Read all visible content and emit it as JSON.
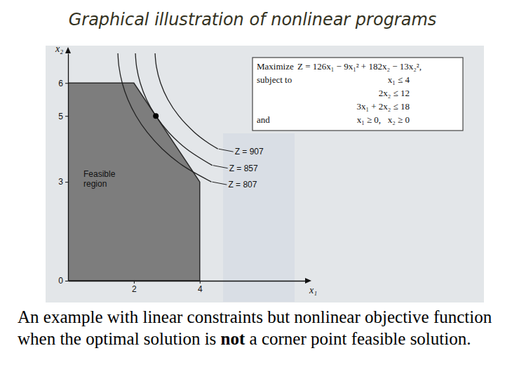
{
  "slide": {
    "title": "Graphical illustration of nonlinear programs",
    "caption": [
      {
        "text": "An example with linear constraints but nonlinear objective function when the optimal solution is "
      },
      {
        "text": "not",
        "bold": true
      },
      {
        "text": " a corner point feasible solution."
      }
    ]
  },
  "chart_data": {
    "type": "line",
    "x_label": "x₁",
    "y_label": "x₂",
    "xlim": [
      0,
      7.2
    ],
    "ylim": [
      0,
      6.9
    ],
    "xticks": [
      2,
      4
    ],
    "yticks": [
      0,
      3,
      5,
      6
    ],
    "grid": false,
    "annotations": [
      {
        "label": "Maximize",
        "expr": "Z = 126x₁ − 9x₁² + 182x₂ − 13x₂²,"
      },
      {
        "label": "subject to",
        "expr": "x₁ ≤ 4"
      },
      {
        "expr": "2x₂ ≤ 12"
      },
      {
        "expr": "3x₁ + 2x₂ ≤ 18"
      },
      {
        "label": "and",
        "expr": "x₁ ≥ 0,   x₂ ≥ 0"
      }
    ],
    "series": [
      {
        "name": "Feasible region",
        "type": "area",
        "color": "#7d7d7d",
        "x": [
          0,
          0,
          2,
          4,
          4
        ],
        "values": [
          0,
          6,
          6,
          3,
          0
        ]
      },
      {
        "name": "Z = 907",
        "type": "line",
        "color": "#222222",
        "x": [
          2.643,
          2.683,
          2.81,
          3.031,
          3.364,
          3.842,
          4.229,
          4.551
        ],
        "values": [
          6.9,
          6.5,
          6,
          5.5,
          5,
          4.5,
          4.2,
          4
        ]
      },
      {
        "name": "Z = 857",
        "type": "line",
        "color": "#222222",
        "x": [
          2.046,
          2.081,
          2.193,
          2.384,
          2.667,
          3.059,
          3.601,
          4.381
        ],
        "values": [
          6.9,
          6.5,
          6,
          5.5,
          5,
          4.5,
          4,
          3.5
        ]
      },
      {
        "name": "Z = 807",
        "type": "line",
        "color": "#222222",
        "x": [
          1.514,
          1.546,
          1.646,
          1.817,
          2.067,
          2.408,
          2.863,
          3.476,
          4.354
        ],
        "values": [
          6.9,
          6.5,
          6,
          5.5,
          5,
          4.5,
          4,
          3.5,
          3
        ]
      },
      {
        "type": "scatter",
        "color": "#000000",
        "x": [
          2.667
        ],
        "values": [
          5
        ]
      }
    ]
  }
}
